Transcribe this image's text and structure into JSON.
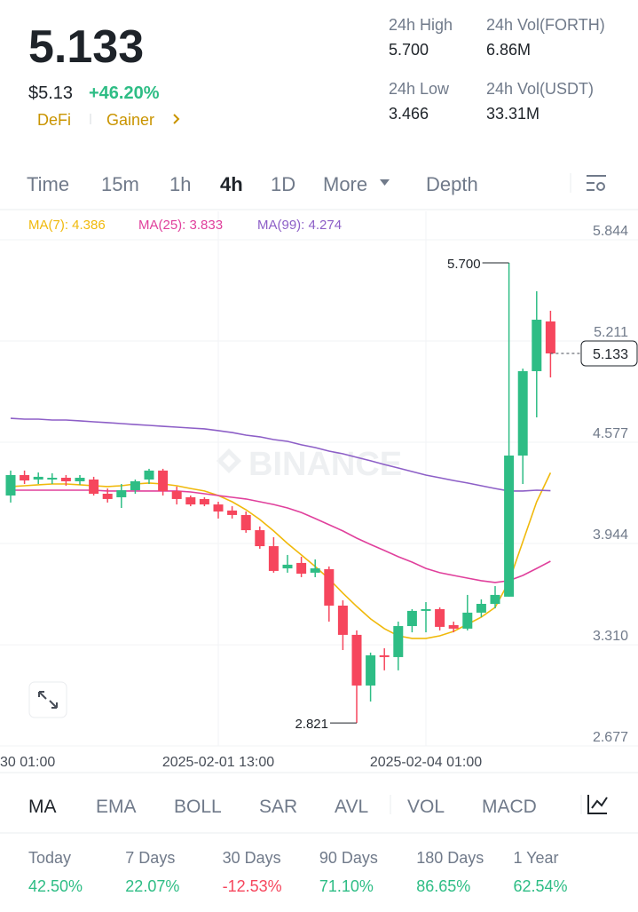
{
  "header": {
    "price": "5.133",
    "usd_price": "$5.13",
    "change": "+46.20%",
    "tags": [
      "DeFi",
      "Gainer"
    ],
    "stats": [
      {
        "label": "24h High",
        "value": "5.700"
      },
      {
        "label": "24h Vol(FORTH)",
        "value": "6.86M"
      },
      {
        "label": "24h Low",
        "value": "3.466"
      },
      {
        "label": "24h Vol(USDT)",
        "value": "33.31M"
      }
    ]
  },
  "tabs": [
    "Time",
    "15m",
    "1h",
    "4h",
    "1D",
    "More",
    "Depth"
  ],
  "chart_data": {
    "type": "candlestick",
    "watermark": "BINANCE",
    "up_color": "#2ebd85",
    "down_color": "#f6465d",
    "categories": [
      "30 01:00",
      null,
      null,
      null,
      null,
      null,
      null,
      null,
      null,
      null,
      null,
      null,
      null,
      null,
      null,
      "2025-02-01 13:00",
      null,
      null,
      null,
      null,
      null,
      null,
      null,
      null,
      null,
      null,
      null,
      null,
      null,
      null,
      "2025-02-04 01:00",
      null,
      null,
      null,
      null,
      null,
      null,
      null,
      null,
      null
    ],
    "open": [
      4.244,
      4.372,
      4.344,
      4.344,
      4.355,
      4.333,
      4.344,
      4.255,
      4.233,
      4.277,
      4.344,
      4.4,
      4.272,
      4.233,
      4.222,
      4.188,
      4.15,
      4.122,
      4.027,
      3.927,
      3.788,
      3.822,
      3.761,
      3.783,
      3.555,
      3.372,
      3.055,
      3.244,
      3.233,
      3.427,
      3.522,
      3.533,
      3.433,
      3.411,
      3.511,
      3.566,
      3.611,
      4.494,
      5.022,
      5.333
    ],
    "high": [
      4.4,
      4.4,
      4.388,
      4.383,
      4.372,
      4.372,
      4.361,
      4.288,
      4.316,
      4.344,
      4.411,
      4.411,
      4.3,
      4.244,
      4.233,
      4.205,
      4.177,
      4.144,
      4.05,
      3.983,
      3.872,
      3.861,
      3.844,
      3.8,
      3.588,
      3.4,
      3.261,
      3.288,
      3.455,
      3.533,
      3.577,
      3.544,
      3.455,
      3.622,
      3.594,
      3.677,
      5.7,
      5.038,
      5.522,
      5.4
    ],
    "low": [
      4.2,
      4.316,
      4.316,
      4.316,
      4.305,
      4.311,
      4.244,
      4.2,
      4.166,
      4.255,
      4.316,
      4.244,
      4.188,
      4.177,
      4.177,
      4.1,
      4.1,
      4.011,
      3.911,
      3.761,
      3.761,
      3.733,
      3.733,
      3.455,
      3.277,
      2.821,
      2.955,
      3.15,
      3.15,
      3.388,
      3.388,
      3.4,
      3.388,
      3.4,
      3.483,
      3.538,
      3.611,
      4.316,
      4.733,
      4.983
    ],
    "close": [
      4.372,
      4.338,
      4.361,
      4.355,
      4.333,
      4.355,
      4.255,
      4.222,
      4.277,
      4.333,
      4.4,
      4.272,
      4.222,
      4.188,
      4.188,
      4.144,
      4.122,
      4.027,
      3.927,
      3.772,
      3.811,
      3.755,
      3.788,
      3.555,
      3.372,
      3.055,
      3.244,
      3.233,
      3.427,
      3.522,
      3.533,
      3.422,
      3.411,
      3.511,
      3.566,
      3.622,
      4.494,
      5.022,
      5.344,
      5.133
    ],
    "series": [
      {
        "name": "MA(7): 4.386",
        "color": "#f0b90b",
        "values": [
          4.3,
          4.305,
          4.311,
          4.316,
          4.316,
          4.311,
          4.305,
          4.3,
          4.305,
          4.316,
          4.322,
          4.316,
          4.305,
          4.288,
          4.272,
          4.244,
          4.205,
          4.155,
          4.094,
          4.022,
          3.944,
          3.872,
          3.8,
          3.722,
          3.633,
          3.55,
          3.472,
          3.411,
          3.366,
          3.35,
          3.35,
          3.366,
          3.394,
          3.438,
          3.483,
          3.544,
          3.705,
          3.955,
          4.205,
          4.386
        ]
      },
      {
        "name": "MA(25): 3.833",
        "color": "#e0409c",
        "values": [
          4.277,
          4.277,
          4.277,
          4.277,
          4.277,
          4.277,
          4.277,
          4.272,
          4.272,
          4.272,
          4.272,
          4.272,
          4.272,
          4.266,
          4.255,
          4.244,
          4.233,
          4.222,
          4.205,
          4.188,
          4.166,
          4.138,
          4.1,
          4.061,
          4.022,
          3.977,
          3.938,
          3.9,
          3.861,
          3.827,
          3.788,
          3.761,
          3.744,
          3.727,
          3.711,
          3.7,
          3.711,
          3.744,
          3.788,
          3.833
        ]
      },
      {
        "name": "MA(99): 4.274",
        "color": "#8d5fc7",
        "values": [
          4.727,
          4.722,
          4.722,
          4.716,
          4.716,
          4.711,
          4.705,
          4.7,
          4.694,
          4.688,
          4.683,
          4.677,
          4.672,
          4.666,
          4.661,
          4.65,
          4.638,
          4.622,
          4.611,
          4.594,
          4.583,
          4.561,
          4.544,
          4.522,
          4.505,
          4.483,
          4.461,
          4.438,
          4.416,
          4.394,
          4.372,
          4.355,
          4.338,
          4.322,
          4.305,
          4.288,
          4.272,
          4.272,
          4.277,
          4.274
        ]
      }
    ],
    "ylim": [
      2.677,
      6.022
    ],
    "yticks": [
      5.844,
      5.211,
      4.577,
      3.944,
      {
        "value": 3.31,
        "label": "3.310"
      },
      2.677
    ],
    "grid": true,
    "last_price": 5.133,
    "annotations": [
      {
        "value": 5.7,
        "label": "5.700"
      },
      {
        "value": 2.821,
        "label": "2.821"
      }
    ]
  },
  "indicators": [
    "MA",
    "EMA",
    "BOLL",
    "SAR",
    "AVL",
    "VOL",
    "MACD"
  ],
  "performance": [
    {
      "label": "Today",
      "value": "42.50%"
    },
    {
      "label": "7 Days",
      "value": "22.07%"
    },
    {
      "label": "30 Days",
      "value": "-12.53%"
    },
    {
      "label": "90 Days",
      "value": "71.10%"
    },
    {
      "label": "180 Days",
      "value": "86.65%"
    },
    {
      "label": "1 Year",
      "value": "62.54%"
    }
  ]
}
